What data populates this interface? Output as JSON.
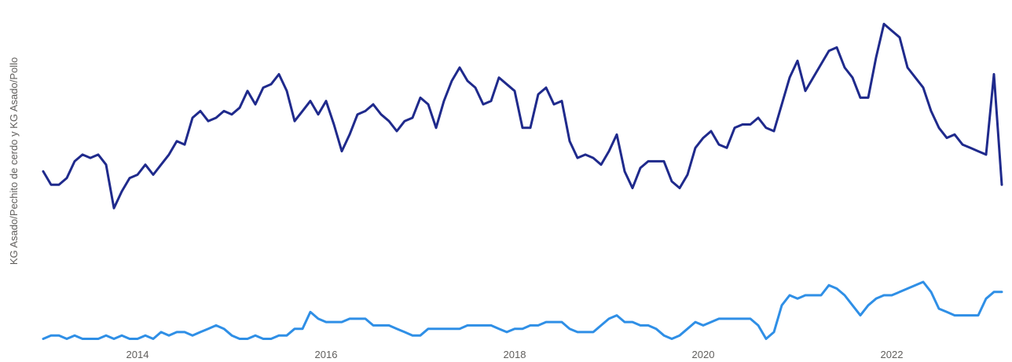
{
  "chart_data": {
    "type": "line",
    "title": "",
    "xlabel": "",
    "ylabel": "KG Asado/Pechito de cerdo y KG Asado/Pollo",
    "x_ticks": [
      "2014",
      "2016",
      "2018",
      "2020",
      "2022"
    ],
    "x_start": "2013-01",
    "x_end": "2023-06",
    "grid": false,
    "legend": "none",
    "series": [
      {
        "color": "#1f2a8c",
        "points": [
          [
            "2013-01",
            1.42
          ],
          [
            "2013-02",
            1.38
          ],
          [
            "2013-03",
            1.38
          ],
          [
            "2013-04",
            1.4
          ],
          [
            "2013-05",
            1.45
          ],
          [
            "2013-06",
            1.47
          ],
          [
            "2013-07",
            1.46
          ],
          [
            "2013-08",
            1.47
          ],
          [
            "2013-09",
            1.44
          ],
          [
            "2013-10",
            1.31
          ],
          [
            "2013-11",
            1.36
          ],
          [
            "2013-12",
            1.4
          ],
          [
            "2014-01",
            1.41
          ],
          [
            "2014-02",
            1.44
          ],
          [
            "2014-03",
            1.41
          ],
          [
            "2014-04",
            1.44
          ],
          [
            "2014-05",
            1.47
          ],
          [
            "2014-06",
            1.51
          ],
          [
            "2014-07",
            1.5
          ],
          [
            "2014-08",
            1.58
          ],
          [
            "2014-09",
            1.6
          ],
          [
            "2014-10",
            1.57
          ],
          [
            "2014-11",
            1.58
          ],
          [
            "2014-12",
            1.6
          ],
          [
            "2015-01",
            1.59
          ],
          [
            "2015-02",
            1.61
          ],
          [
            "2015-03",
            1.66
          ],
          [
            "2015-04",
            1.62
          ],
          [
            "2015-05",
            1.67
          ],
          [
            "2015-06",
            1.68
          ],
          [
            "2015-07",
            1.71
          ],
          [
            "2015-08",
            1.66
          ],
          [
            "2015-09",
            1.57
          ],
          [
            "2015-10",
            1.6
          ],
          [
            "2015-11",
            1.63
          ],
          [
            "2015-12",
            1.59
          ],
          [
            "2016-01",
            1.63
          ],
          [
            "2016-02",
            1.56
          ],
          [
            "2016-03",
            1.48
          ],
          [
            "2016-04",
            1.53
          ],
          [
            "2016-05",
            1.59
          ],
          [
            "2016-06",
            1.6
          ],
          [
            "2016-07",
            1.62
          ],
          [
            "2016-08",
            1.59
          ],
          [
            "2016-09",
            1.57
          ],
          [
            "2016-10",
            1.54
          ],
          [
            "2016-11",
            1.57
          ],
          [
            "2016-12",
            1.58
          ],
          [
            "2017-01",
            1.64
          ],
          [
            "2017-02",
            1.62
          ],
          [
            "2017-03",
            1.55
          ],
          [
            "2017-04",
            1.63
          ],
          [
            "2017-05",
            1.69
          ],
          [
            "2017-06",
            1.73
          ],
          [
            "2017-07",
            1.69
          ],
          [
            "2017-08",
            1.67
          ],
          [
            "2017-09",
            1.62
          ],
          [
            "2017-10",
            1.63
          ],
          [
            "2017-11",
            1.7
          ],
          [
            "2017-12",
            1.68
          ],
          [
            "2018-01",
            1.66
          ],
          [
            "2018-02",
            1.55
          ],
          [
            "2018-03",
            1.55
          ],
          [
            "2018-04",
            1.65
          ],
          [
            "2018-05",
            1.67
          ],
          [
            "2018-06",
            1.62
          ],
          [
            "2018-07",
            1.63
          ],
          [
            "2018-08",
            1.51
          ],
          [
            "2018-09",
            1.46
          ],
          [
            "2018-10",
            1.47
          ],
          [
            "2018-11",
            1.46
          ],
          [
            "2018-12",
            1.44
          ],
          [
            "2019-01",
            1.48
          ],
          [
            "2019-02",
            1.53
          ],
          [
            "2019-03",
            1.42
          ],
          [
            "2019-04",
            1.37
          ],
          [
            "2019-05",
            1.43
          ],
          [
            "2019-06",
            1.45
          ],
          [
            "2019-07",
            1.45
          ],
          [
            "2019-08",
            1.45
          ],
          [
            "2019-09",
            1.39
          ],
          [
            "2019-10",
            1.37
          ],
          [
            "2019-11",
            1.41
          ],
          [
            "2019-12",
            1.49
          ],
          [
            "2020-01",
            1.52
          ],
          [
            "2020-02",
            1.54
          ],
          [
            "2020-03",
            1.5
          ],
          [
            "2020-04",
            1.49
          ],
          [
            "2020-05",
            1.55
          ],
          [
            "2020-06",
            1.56
          ],
          [
            "2020-07",
            1.56
          ],
          [
            "2020-08",
            1.58
          ],
          [
            "2020-09",
            1.55
          ],
          [
            "2020-10",
            1.54
          ],
          [
            "2020-11",
            1.62
          ],
          [
            "2020-12",
            1.7
          ],
          [
            "2021-01",
            1.75
          ],
          [
            "2021-02",
            1.66
          ],
          [
            "2021-03",
            1.7
          ],
          [
            "2021-04",
            1.74
          ],
          [
            "2021-05",
            1.78
          ],
          [
            "2021-06",
            1.79
          ],
          [
            "2021-07",
            1.73
          ],
          [
            "2021-08",
            1.7
          ],
          [
            "2021-09",
            1.64
          ],
          [
            "2021-10",
            1.64
          ],
          [
            "2021-11",
            1.76
          ],
          [
            "2021-12",
            1.86
          ],
          [
            "2022-01",
            1.84
          ],
          [
            "2022-02",
            1.82
          ],
          [
            "2022-03",
            1.73
          ],
          [
            "2022-04",
            1.7
          ],
          [
            "2022-05",
            1.67
          ],
          [
            "2022-06",
            1.6
          ],
          [
            "2022-07",
            1.55
          ],
          [
            "2022-08",
            1.52
          ],
          [
            "2022-09",
            1.53
          ],
          [
            "2022-10",
            1.5
          ],
          [
            "2022-11",
            1.49
          ],
          [
            "2022-12",
            1.48
          ],
          [
            "2023-01",
            1.47
          ],
          [
            "2023-02",
            1.71
          ],
          [
            "2023-03",
            1.38
          ]
        ]
      },
      {
        "color": "#2f8fe6",
        "points": [
          [
            "2013-01",
            0.92
          ],
          [
            "2013-02",
            0.93
          ],
          [
            "2013-03",
            0.93
          ],
          [
            "2013-04",
            0.92
          ],
          [
            "2013-05",
            0.93
          ],
          [
            "2013-06",
            0.92
          ],
          [
            "2013-07",
            0.92
          ],
          [
            "2013-08",
            0.92
          ],
          [
            "2013-09",
            0.93
          ],
          [
            "2013-10",
            0.92
          ],
          [
            "2013-11",
            0.93
          ],
          [
            "2013-12",
            0.92
          ],
          [
            "2014-01",
            0.92
          ],
          [
            "2014-02",
            0.93
          ],
          [
            "2014-03",
            0.92
          ],
          [
            "2014-04",
            0.94
          ],
          [
            "2014-05",
            0.93
          ],
          [
            "2014-06",
            0.94
          ],
          [
            "2014-07",
            0.94
          ],
          [
            "2014-08",
            0.93
          ],
          [
            "2014-09",
            0.94
          ],
          [
            "2014-10",
            0.95
          ],
          [
            "2014-11",
            0.96
          ],
          [
            "2014-12",
            0.95
          ],
          [
            "2015-01",
            0.93
          ],
          [
            "2015-02",
            0.92
          ],
          [
            "2015-03",
            0.92
          ],
          [
            "2015-04",
            0.93
          ],
          [
            "2015-05",
            0.92
          ],
          [
            "2015-06",
            0.92
          ],
          [
            "2015-07",
            0.93
          ],
          [
            "2015-08",
            0.93
          ],
          [
            "2015-09",
            0.95
          ],
          [
            "2015-10",
            0.95
          ],
          [
            "2015-11",
            1.0
          ],
          [
            "2015-12",
            0.98
          ],
          [
            "2016-01",
            0.97
          ],
          [
            "2016-02",
            0.97
          ],
          [
            "2016-03",
            0.97
          ],
          [
            "2016-04",
            0.98
          ],
          [
            "2016-05",
            0.98
          ],
          [
            "2016-06",
            0.98
          ],
          [
            "2016-07",
            0.96
          ],
          [
            "2016-08",
            0.96
          ],
          [
            "2016-09",
            0.96
          ],
          [
            "2016-10",
            0.95
          ],
          [
            "2016-11",
            0.94
          ],
          [
            "2016-12",
            0.93
          ],
          [
            "2017-01",
            0.93
          ],
          [
            "2017-02",
            0.95
          ],
          [
            "2017-03",
            0.95
          ],
          [
            "2017-04",
            0.95
          ],
          [
            "2017-05",
            0.95
          ],
          [
            "2017-06",
            0.95
          ],
          [
            "2017-07",
            0.96
          ],
          [
            "2017-08",
            0.96
          ],
          [
            "2017-09",
            0.96
          ],
          [
            "2017-10",
            0.96
          ],
          [
            "2017-11",
            0.95
          ],
          [
            "2017-12",
            0.94
          ],
          [
            "2018-01",
            0.95
          ],
          [
            "2018-02",
            0.95
          ],
          [
            "2018-03",
            0.96
          ],
          [
            "2018-04",
            0.96
          ],
          [
            "2018-05",
            0.97
          ],
          [
            "2018-06",
            0.97
          ],
          [
            "2018-07",
            0.97
          ],
          [
            "2018-08",
            0.95
          ],
          [
            "2018-09",
            0.94
          ],
          [
            "2018-10",
            0.94
          ],
          [
            "2018-11",
            0.94
          ],
          [
            "2018-12",
            0.96
          ],
          [
            "2019-01",
            0.98
          ],
          [
            "2019-02",
            0.99
          ],
          [
            "2019-03",
            0.97
          ],
          [
            "2019-04",
            0.97
          ],
          [
            "2019-05",
            0.96
          ],
          [
            "2019-06",
            0.96
          ],
          [
            "2019-07",
            0.95
          ],
          [
            "2019-08",
            0.93
          ],
          [
            "2019-09",
            0.92
          ],
          [
            "2019-10",
            0.93
          ],
          [
            "2019-11",
            0.95
          ],
          [
            "2019-12",
            0.97
          ],
          [
            "2020-01",
            0.96
          ],
          [
            "2020-02",
            0.97
          ],
          [
            "2020-03",
            0.98
          ],
          [
            "2020-04",
            0.98
          ],
          [
            "2020-05",
            0.98
          ],
          [
            "2020-06",
            0.98
          ],
          [
            "2020-07",
            0.98
          ],
          [
            "2020-08",
            0.96
          ],
          [
            "2020-09",
            0.92
          ],
          [
            "2020-10",
            0.94
          ],
          [
            "2020-11",
            1.02
          ],
          [
            "2020-12",
            1.05
          ],
          [
            "2021-01",
            1.04
          ],
          [
            "2021-02",
            1.05
          ],
          [
            "2021-03",
            1.05
          ],
          [
            "2021-04",
            1.05
          ],
          [
            "2021-05",
            1.08
          ],
          [
            "2021-06",
            1.07
          ],
          [
            "2021-07",
            1.05
          ],
          [
            "2021-08",
            1.02
          ],
          [
            "2021-09",
            0.99
          ],
          [
            "2021-10",
            1.02
          ],
          [
            "2021-11",
            1.04
          ],
          [
            "2021-12",
            1.05
          ],
          [
            "2022-01",
            1.05
          ],
          [
            "2022-02",
            1.06
          ],
          [
            "2022-03",
            1.07
          ],
          [
            "2022-04",
            1.08
          ],
          [
            "2022-05",
            1.09
          ],
          [
            "2022-06",
            1.06
          ],
          [
            "2022-07",
            1.01
          ],
          [
            "2022-08",
            1.0
          ],
          [
            "2022-09",
            0.99
          ],
          [
            "2022-10",
            0.99
          ],
          [
            "2022-11",
            0.99
          ],
          [
            "2022-12",
            0.99
          ],
          [
            "2023-01",
            1.04
          ],
          [
            "2023-02",
            1.06
          ],
          [
            "2023-03",
            1.06
          ]
        ]
      }
    ],
    "ylim": [
      0.9,
      1.88
    ]
  }
}
